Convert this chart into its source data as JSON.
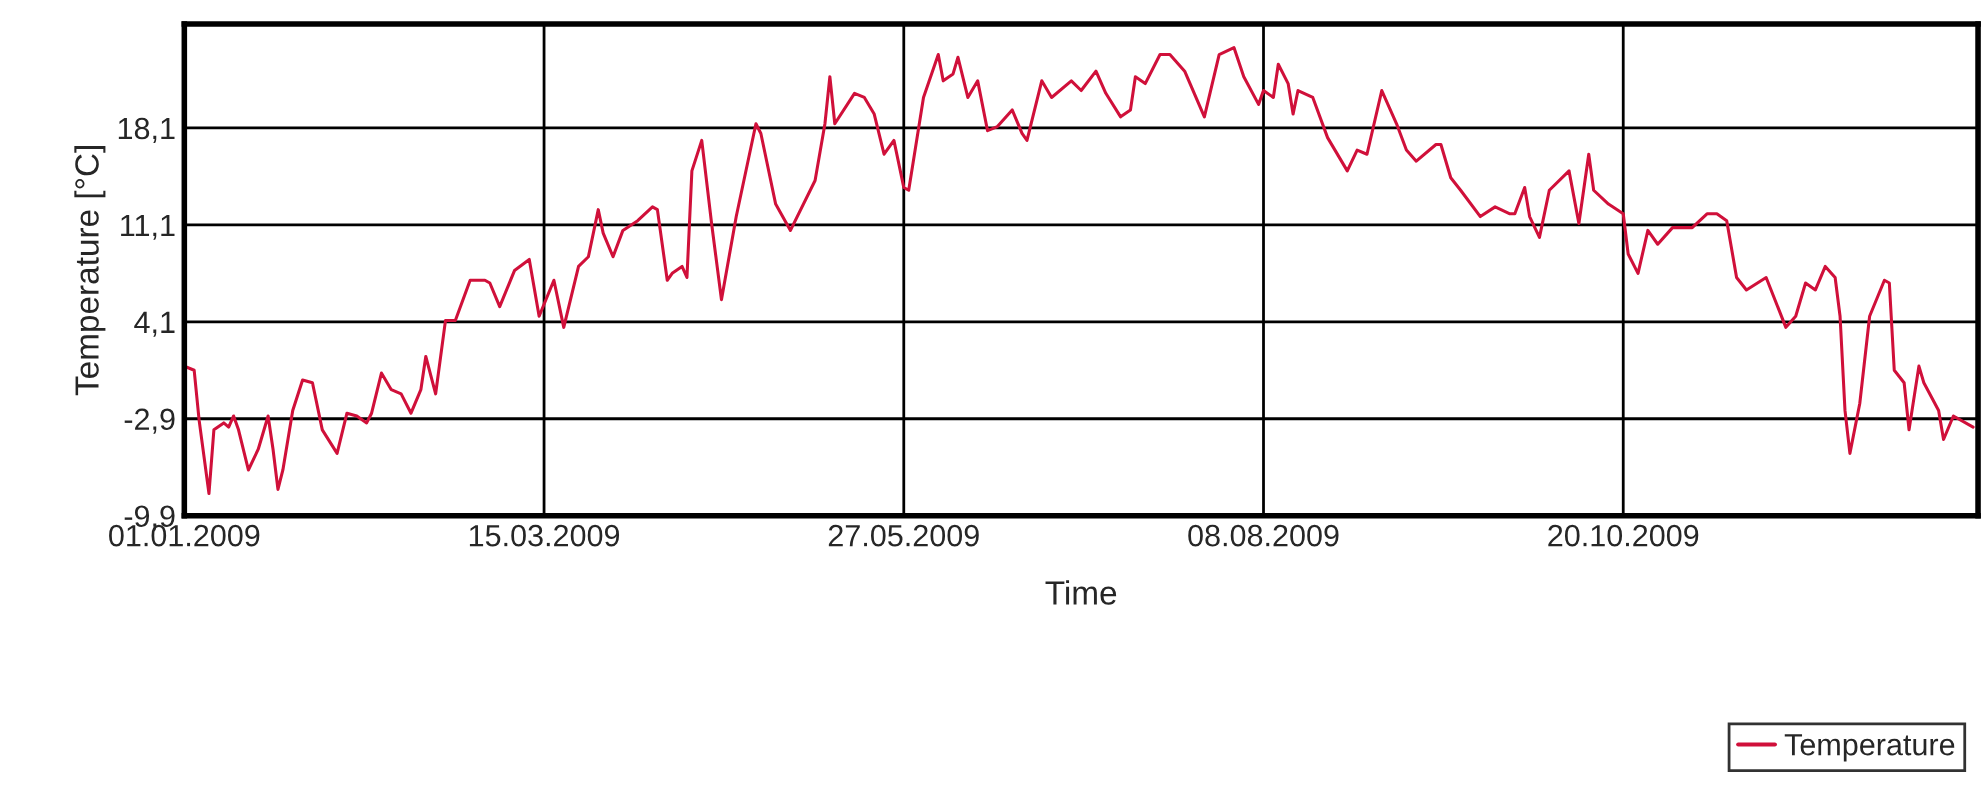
{
  "chart_data": {
    "type": "line",
    "xlabel": "Time",
    "ylabel": "Temperature [°C]",
    "x": [
      "2009-01-01",
      "2009-01-03",
      "2009-01-04",
      "2009-01-06",
      "2009-01-07",
      "2009-01-09",
      "2009-01-10",
      "2009-01-11",
      "2009-01-12",
      "2009-01-14",
      "2009-01-16",
      "2009-01-18",
      "2009-01-19",
      "2009-01-20",
      "2009-01-21",
      "2009-01-23",
      "2009-01-25",
      "2009-01-27",
      "2009-01-29",
      "2009-02-01",
      "2009-02-03",
      "2009-02-05",
      "2009-02-07",
      "2009-02-08",
      "2009-02-10",
      "2009-02-12",
      "2009-02-14",
      "2009-02-16",
      "2009-02-18",
      "2009-02-19",
      "2009-02-21",
      "2009-02-23",
      "2009-02-25",
      "2009-02-28",
      "2009-03-03",
      "2009-03-04",
      "2009-03-06",
      "2009-03-09",
      "2009-03-12",
      "2009-03-14",
      "2009-03-17",
      "2009-03-19",
      "2009-03-22",
      "2009-03-24",
      "2009-03-26",
      "2009-03-27",
      "2009-03-29",
      "2009-03-31",
      "2009-04-03",
      "2009-04-06",
      "2009-04-07",
      "2009-04-09",
      "2009-04-10",
      "2009-04-12",
      "2009-04-13",
      "2009-04-14",
      "2009-04-16",
      "2009-04-18",
      "2009-04-20",
      "2009-04-23",
      "2009-04-27",
      "2009-04-28",
      "2009-05-01",
      "2009-05-04",
      "2009-05-09",
      "2009-05-11",
      "2009-05-12",
      "2009-05-13",
      "2009-05-17",
      "2009-05-19",
      "2009-05-21",
      "2009-05-23",
      "2009-05-25",
      "2009-05-27",
      "2009-05-28",
      "2009-05-31",
      "2009-06-03",
      "2009-06-04",
      "2009-06-06",
      "2009-06-07",
      "2009-06-09",
      "2009-06-11",
      "2009-06-13",
      "2009-06-15",
      "2009-06-18",
      "2009-06-20",
      "2009-06-21",
      "2009-06-24",
      "2009-06-26",
      "2009-06-30",
      "2009-07-02",
      "2009-07-05",
      "2009-07-07",
      "2009-07-10",
      "2009-07-12",
      "2009-07-13",
      "2009-07-15",
      "2009-07-18",
      "2009-07-20",
      "2009-07-23",
      "2009-07-27",
      "2009-07-30",
      "2009-08-02",
      "2009-08-04",
      "2009-08-07",
      "2009-08-08",
      "2009-08-10",
      "2009-08-11",
      "2009-08-13",
      "2009-08-14",
      "2009-08-15",
      "2009-08-18",
      "2009-08-21",
      "2009-08-25",
      "2009-08-27",
      "2009-08-29",
      "2009-09-01",
      "2009-09-04",
      "2009-09-06",
      "2009-09-08",
      "2009-09-12",
      "2009-09-13",
      "2009-09-15",
      "2009-09-17",
      "2009-09-21",
      "2009-09-24",
      "2009-09-27",
      "2009-09-28",
      "2009-09-30",
      "2009-10-01",
      "2009-10-03",
      "2009-10-05",
      "2009-10-09",
      "2009-10-11",
      "2009-10-13",
      "2009-10-14",
      "2009-10-17",
      "2009-10-20",
      "2009-10-21",
      "2009-10-23",
      "2009-10-25",
      "2009-10-27",
      "2009-10-30",
      "2009-11-03",
      "2009-11-06",
      "2009-11-08",
      "2009-11-10",
      "2009-11-12",
      "2009-11-14",
      "2009-11-18",
      "2009-11-22",
      "2009-11-24",
      "2009-11-26",
      "2009-11-28",
      "2009-11-30",
      "2009-12-02",
      "2009-12-03",
      "2009-12-04",
      "2009-12-05",
      "2009-12-07",
      "2009-12-09",
      "2009-12-12",
      "2009-12-13",
      "2009-12-14",
      "2009-12-16",
      "2009-12-17",
      "2009-12-19",
      "2009-12-20",
      "2009-12-23",
      "2009-12-24",
      "2009-12-26",
      "2009-12-30"
    ],
    "series": [
      {
        "name": "Temperature",
        "color": "#d0103a",
        "values": [
          0.9,
          0.6,
          -3.0,
          -8.3,
          -3.7,
          -3.2,
          -3.5,
          -2.7,
          -3.7,
          -6.6,
          -5.1,
          -2.7,
          -5.1,
          -8.0,
          -6.6,
          -2.3,
          -0.1,
          -0.3,
          -3.7,
          -5.4,
          -2.5,
          -2.7,
          -3.2,
          -2.5,
          0.4,
          -0.8,
          -1.1,
          -2.5,
          -0.8,
          1.6,
          -1.1,
          4.2,
          4.2,
          7.1,
          7.1,
          6.9,
          5.2,
          7.8,
          8.6,
          4.5,
          7.1,
          3.7,
          8.1,
          8.8,
          12.2,
          10.5,
          8.8,
          10.7,
          11.4,
          12.4,
          12.2,
          7.1,
          7.6,
          8.1,
          7.3,
          15.0,
          17.2,
          11.2,
          5.7,
          11.7,
          18.4,
          17.7,
          12.6,
          10.7,
          14.3,
          18.4,
          21.8,
          18.4,
          20.6,
          20.3,
          19.1,
          16.2,
          17.2,
          13.8,
          13.6,
          20.3,
          23.4,
          21.5,
          22.0,
          23.2,
          20.3,
          21.5,
          17.9,
          18.2,
          19.4,
          17.7,
          17.2,
          21.5,
          20.3,
          21.5,
          20.8,
          22.2,
          20.6,
          18.9,
          19.4,
          21.8,
          21.3,
          23.4,
          23.4,
          22.2,
          18.9,
          23.4,
          23.9,
          21.8,
          19.8,
          20.8,
          20.3,
          22.7,
          21.3,
          19.1,
          20.8,
          20.3,
          17.4,
          15.0,
          16.5,
          16.2,
          20.8,
          18.4,
          16.5,
          15.7,
          16.9,
          16.9,
          14.5,
          13.6,
          11.7,
          12.4,
          11.9,
          11.9,
          13.8,
          11.7,
          10.2,
          13.6,
          15.0,
          11.2,
          16.2,
          13.6,
          12.6,
          11.9,
          9.0,
          7.6,
          10.7,
          9.7,
          10.9,
          10.9,
          11.9,
          11.9,
          11.4,
          7.3,
          6.4,
          7.3,
          3.7,
          4.5,
          6.9,
          6.4,
          8.1,
          7.3,
          4.5,
          -2.3,
          -5.4,
          -1.8,
          4.5,
          7.1,
          6.9,
          0.6,
          -0.3,
          -3.7,
          0.9,
          -0.3,
          -2.3,
          -4.4,
          -2.7,
          -3.5
        ]
      }
    ],
    "xlim": [
      "2009-01-01",
      "2009-12-31"
    ],
    "xticks": [
      {
        "value": "2009-01-01",
        "label": "01.01.2009"
      },
      {
        "value": "2009-03-15",
        "label": "15.03.2009"
      },
      {
        "value": "2009-05-27",
        "label": "27.05.2009"
      },
      {
        "value": "2009-08-08",
        "label": "08.08.2009"
      },
      {
        "value": "2009-10-20",
        "label": "20.10.2009"
      }
    ],
    "ylim": [
      -9.9,
      25.6
    ],
    "yticks": [
      {
        "value": -9.9,
        "label": "-9,9"
      },
      {
        "value": -2.9,
        "label": "-2,9"
      },
      {
        "value": 4.1,
        "label": "4,1"
      },
      {
        "value": 11.1,
        "label": "11,1"
      },
      {
        "value": 18.1,
        "label": "18,1"
      }
    ],
    "grid": true,
    "legend": "bottom right",
    "marker": "none",
    "line_style": "solid"
  }
}
